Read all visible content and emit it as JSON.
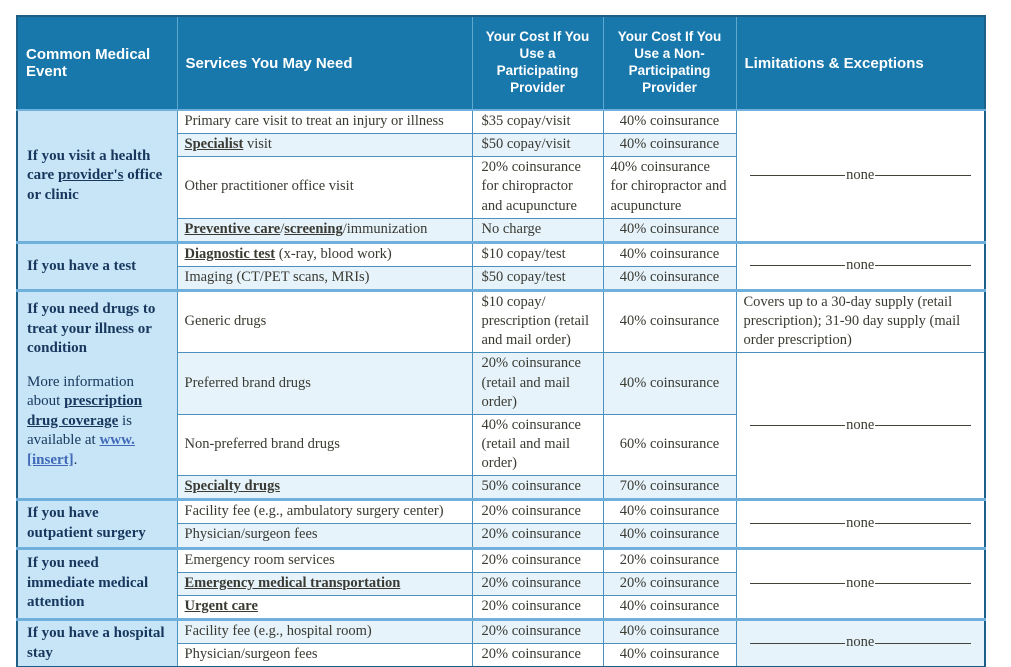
{
  "colors": {
    "header_bg": "#1878AC",
    "header_text": "#FFFFFF",
    "event_bg": "#C7E5F6",
    "stripe_bg": "#E6F3FB",
    "plain_bg": "#FFFFFF",
    "border_thin": "#4C91BE",
    "section_border": "#6FB0DC",
    "outer_border": "#1E5F86",
    "body_text": "#3A3A32",
    "event_text": "#17375E",
    "link_color": "#4169B8",
    "dash_color": "#44443C"
  },
  "none_label": "none",
  "header": {
    "columns": [
      {
        "label": "Common Medical Event"
      },
      {
        "label": "Services You May Need"
      },
      {
        "label": "Your Cost If You Use a Participating Provider"
      },
      {
        "label": "Your Cost If You Use a Non-Participating Provider"
      },
      {
        "label": "Limitations & Exceptions"
      }
    ]
  },
  "sections": [
    {
      "name": "office-clinic",
      "event": [
        [
          {
            "t": "If you visit a health care ",
            "s": "b"
          },
          {
            "t": "provider's",
            "s": "bu"
          },
          {
            "t": " office or clinic",
            "s": "b"
          }
        ]
      ],
      "rows": [
        {
          "service": [
            {
              "t": "Primary care visit to treat an injury or illness"
            }
          ],
          "part": "$35 copay/visit",
          "nonpart": "40% coinsurance"
        },
        {
          "service": [
            {
              "t": "Specialist",
              "s": "bu"
            },
            {
              "t": " visit"
            }
          ],
          "part": "$50 copay/visit",
          "nonpart": "40% coinsurance"
        },
        {
          "service": [
            {
              "t": "Other practitioner office visit"
            }
          ],
          "part": "20% coinsurance for chiropractor and acupuncture",
          "nonpart": "40% coinsurance for chiropractor and acupuncture"
        },
        {
          "service": [
            {
              "t": "Preventive care",
              "s": "bu"
            },
            {
              "t": "/"
            },
            {
              "t": "screening",
              "s": "bu"
            },
            {
              "t": "/immunization"
            }
          ],
          "part": "No charge",
          "nonpart": "40% coinsurance"
        }
      ],
      "limitations": [
        {
          "rows": 4,
          "kind": "none"
        }
      ]
    },
    {
      "name": "test",
      "event": [
        [
          {
            "t": "If you have a test",
            "s": "b"
          }
        ]
      ],
      "rows": [
        {
          "service": [
            {
              "t": "Diagnostic test",
              "s": "bu"
            },
            {
              "t": " (x-ray, blood work)"
            }
          ],
          "part": "$10 copay/test",
          "nonpart": "40% coinsurance"
        },
        {
          "service": [
            {
              "t": "Imaging (CT/PET scans, MRIs)"
            }
          ],
          "part": "$50 copay/test",
          "nonpart": "40% coinsurance"
        }
      ],
      "limitations": [
        {
          "rows": 2,
          "kind": "none"
        }
      ]
    },
    {
      "name": "drugs",
      "event_top": true,
      "event": [
        [
          {
            "t": "If you need drugs to treat your illness or condition",
            "s": "b"
          }
        ],
        [
          {
            "t": "More information about ",
            "s": "n"
          },
          {
            "t": "prescription drug coverage",
            "s": "bu"
          },
          {
            "t": " is available at ",
            "s": "n"
          },
          {
            "t": "www. [insert]",
            "s": "link"
          },
          {
            "t": ".",
            "s": "n"
          }
        ]
      ],
      "rows": [
        {
          "service": [
            {
              "t": "Generic drugs"
            }
          ],
          "part": "$10 copay/ prescription (retail and mail order)",
          "nonpart": "40% coinsurance"
        },
        {
          "service": [
            {
              "t": "Preferred brand drugs"
            }
          ],
          "part": "20% coinsurance (retail and mail order)",
          "nonpart": "40% coinsurance"
        },
        {
          "service": [
            {
              "t": "Non-preferred brand drugs"
            }
          ],
          "part": "40% coinsurance (retail and mail order)",
          "nonpart": "60% coinsurance"
        },
        {
          "service": [
            {
              "t": "Specialty drugs",
              "s": "bu"
            }
          ],
          "part": "50% coinsurance",
          "nonpart": "70% coinsurance"
        }
      ],
      "limitations": [
        {
          "rows": 1,
          "kind": "text",
          "text": "Covers up to a 30-day supply (retail prescription); 31-90 day supply (mail order prescription)"
        },
        {
          "rows": 3,
          "kind": "none"
        }
      ]
    },
    {
      "name": "outpatient-surgery",
      "event": [
        [
          {
            "t": "If you have outpatient surgery",
            "s": "b"
          }
        ]
      ],
      "rows": [
        {
          "service": [
            {
              "t": "Facility fee (e.g., ambulatory surgery center)"
            }
          ],
          "part": "20% coinsurance",
          "nonpart": "40% coinsurance"
        },
        {
          "service": [
            {
              "t": "Physician/surgeon fees"
            }
          ],
          "part": "20% coinsurance",
          "nonpart": "40% coinsurance"
        }
      ],
      "limitations": [
        {
          "rows": 2,
          "kind": "none"
        }
      ]
    },
    {
      "name": "immediate-medical-attention",
      "event": [
        [
          {
            "t": "If you need immediate medical attention",
            "s": "b"
          }
        ]
      ],
      "rows": [
        {
          "service": [
            {
              "t": "Emergency room services"
            }
          ],
          "part": "20% coinsurance",
          "nonpart": "20% coinsurance"
        },
        {
          "service": [
            {
              "t": "Emergency medical transportation",
              "s": "bu"
            }
          ],
          "part": "20% coinsurance",
          "nonpart": "20% coinsurance"
        },
        {
          "service": [
            {
              "t": "Urgent care",
              "s": "bu"
            }
          ],
          "part": "20% coinsurance",
          "nonpart": "40% coinsurance"
        }
      ],
      "limitations": [
        {
          "rows": 3,
          "kind": "none"
        }
      ]
    },
    {
      "name": "hospital-stay",
      "event": [
        [
          {
            "t": "If you have a hospital stay",
            "s": "b"
          }
        ]
      ],
      "rows": [
        {
          "service": [
            {
              "t": "Facility fee (e.g., hospital room)"
            }
          ],
          "part": "20% coinsurance",
          "nonpart": "40% coinsurance"
        },
        {
          "service": [
            {
              "t": "Physician/surgeon fees"
            }
          ],
          "part": "20% coinsurance",
          "nonpart": "40% coinsurance"
        }
      ],
      "limitations": [
        {
          "rows": 2,
          "kind": "none",
          "tinted": true
        }
      ]
    }
  ]
}
